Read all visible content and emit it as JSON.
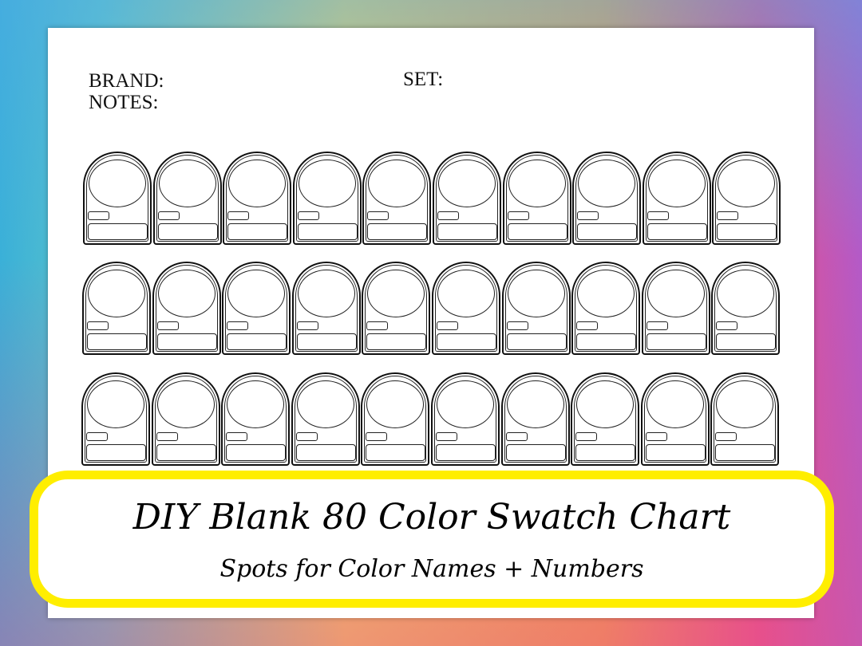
{
  "sheet": {
    "brand_label": "BRAND:",
    "set_label": "SET:",
    "notes_label": "NOTES:"
  },
  "swatch_grid": {
    "rows": 3,
    "columns": 10
  },
  "banner": {
    "title": "DIY Blank 80 Color Swatch Chart",
    "subtitle": "Spots for Color Names + Numbers",
    "border_color": "#ffee00"
  }
}
